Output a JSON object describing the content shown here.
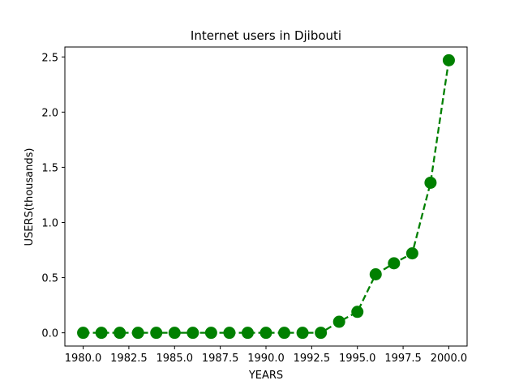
{
  "chart_data": {
    "type": "line",
    "title": "Internet users in Djibouti",
    "xlabel": "YEARS",
    "ylabel": "USERS(thousands)",
    "x": [
      1980,
      1981,
      1982,
      1983,
      1984,
      1985,
      1986,
      1987,
      1988,
      1989,
      1990,
      1991,
      1992,
      1993,
      1994,
      1995,
      1996,
      1997,
      1998,
      1999,
      2000
    ],
    "series": [
      {
        "values": [
          0,
          0,
          0,
          0,
          0,
          0,
          0,
          0,
          0,
          0,
          0,
          0,
          0,
          0,
          0.1,
          0.19,
          0.53,
          0.63,
          0.72,
          1.36,
          2.47
        ],
        "color": "#008000",
        "line_style": "dashed",
        "marker": "circle"
      }
    ],
    "xlim": [
      1979,
      2001
    ],
    "ylim": [
      -0.12,
      2.59
    ],
    "xticks": [
      1980.0,
      1982.5,
      1985.0,
      1987.5,
      1990.0,
      1992.5,
      1995.0,
      1997.5,
      2000.0
    ],
    "xtick_labels": [
      "1980.0",
      "1982.5",
      "1985.0",
      "1987.5",
      "1990.0",
      "1992.5",
      "1995.0",
      "1997.5",
      "2000.0"
    ],
    "yticks": [
      0.0,
      0.5,
      1.0,
      1.5,
      2.0,
      2.5
    ],
    "ytick_labels": [
      "0.0",
      "0.5",
      "1.0",
      "1.5",
      "2.0",
      "2.5"
    ],
    "grid": false,
    "legend": "none"
  }
}
